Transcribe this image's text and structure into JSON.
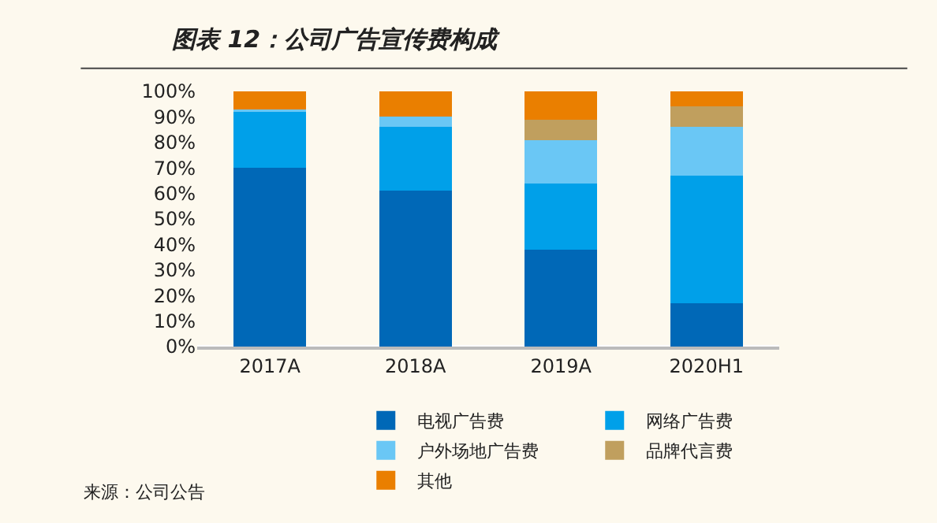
{
  "chart_data": {
    "type": "bar",
    "title": "图表 12：公司广告宣传费构成",
    "stacked": true,
    "legend": "bottom",
    "grid": false,
    "categories": [
      "2017A",
      "2018A",
      "2019A",
      "2020H1"
    ],
    "ylim": [
      0,
      100
    ],
    "yticks": [
      {
        "value": 0,
        "label": "0%"
      },
      {
        "value": 10,
        "label": "10%"
      },
      {
        "value": 20,
        "label": "20%"
      },
      {
        "value": 30,
        "label": "30%"
      },
      {
        "value": 40,
        "label": "40%"
      },
      {
        "value": 50,
        "label": "50%"
      },
      {
        "value": 60,
        "label": "60%"
      },
      {
        "value": 70,
        "label": "70%"
      },
      {
        "value": 80,
        "label": "80%"
      },
      {
        "value": 90,
        "label": "90%"
      },
      {
        "value": 100,
        "label": "100%"
      }
    ],
    "series": [
      {
        "name": "电视广告费",
        "color": "#0068b7",
        "values": [
          70,
          61,
          38,
          17
        ]
      },
      {
        "name": "网络广告费",
        "color": "#00a0e9",
        "values": [
          22,
          25,
          26,
          50
        ]
      },
      {
        "name": "户外场地广告费",
        "color": "#6ac7f5",
        "values": [
          1,
          4,
          17,
          19
        ]
      },
      {
        "name": "品牌代言费",
        "color": "#c09f5e",
        "values": [
          0,
          0,
          8,
          8
        ]
      },
      {
        "name": "其他",
        "color": "#ea7f00",
        "values": [
          7,
          10,
          11,
          6
        ]
      }
    ],
    "annotations": [
      "来源：公司公告"
    ]
  }
}
